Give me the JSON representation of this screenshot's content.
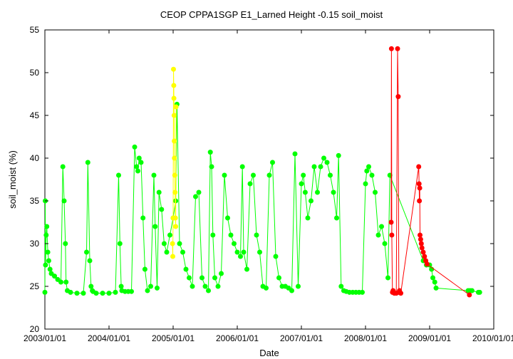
{
  "chart_data": {
    "type": "scatter",
    "title": "CEOP CPPA1SGP E1_Larned Height -0.15 soil_moist",
    "xlabel": "Date",
    "ylabel": "soil_moist (%)",
    "xlim": [
      2003.0,
      2010.0
    ],
    "ylim": [
      20,
      55
    ],
    "x_ticks": [
      "2003/01/01",
      "2004/01/01",
      "2005/01/01",
      "2006/01/01",
      "2007/01/01",
      "2008/01/01",
      "2009/01/01",
      "2010/01/01"
    ],
    "y_ticks": [
      20,
      25,
      30,
      35,
      40,
      45,
      50,
      55
    ],
    "grid": false,
    "series": [
      {
        "name": "green",
        "color": "#00ff00",
        "x": [
          2003.0,
          2003.005,
          2003.01,
          2003.02,
          2003.03,
          2003.045,
          2003.06,
          2003.08,
          2003.1,
          2003.15,
          2003.2,
          2003.25,
          2003.28,
          2003.3,
          2003.32,
          2003.33,
          2003.35,
          2003.4,
          2003.5,
          2003.6,
          2003.65,
          2003.67,
          2003.7,
          2003.72,
          2003.74,
          2003.75,
          2003.8,
          2003.9,
          2004.0,
          2004.1,
          2004.15,
          2004.17,
          2004.19,
          2004.2,
          2004.25,
          2004.3,
          2004.35,
          2004.4,
          2004.43,
          2004.45,
          2004.47,
          2004.5,
          2004.53,
          2004.56,
          2004.6,
          2004.65,
          2004.7,
          2004.72,
          2004.75,
          2004.78,
          2004.82,
          2004.86,
          2004.9,
          2004.95,
          2005.0,
          2005.04,
          2005.06,
          2005.1,
          2005.15,
          2005.2,
          2005.25,
          2005.3,
          2005.35,
          2005.4,
          2005.45,
          2005.5,
          2005.55,
          2005.58,
          2005.6,
          2005.62,
          2005.65,
          2005.7,
          2005.75,
          2005.8,
          2005.85,
          2005.9,
          2005.95,
          2006.0,
          2006.05,
          2006.08,
          2006.1,
          2006.15,
          2006.2,
          2006.25,
          2006.3,
          2006.35,
          2006.4,
          2006.45,
          2006.5,
          2006.55,
          2006.6,
          2006.65,
          2006.7,
          2006.75,
          2006.8,
          2006.85,
          2006.9,
          2006.95,
          2007.0,
          2007.03,
          2007.06,
          2007.1,
          2007.15,
          2007.2,
          2007.25,
          2007.3,
          2007.35,
          2007.4,
          2007.45,
          2007.5,
          2007.55,
          2007.58,
          2007.62,
          2007.66,
          2007.7,
          2007.75,
          2007.8,
          2007.85,
          2007.9,
          2007.95,
          2008.0,
          2008.02,
          2008.05,
          2008.1,
          2008.15,
          2008.2,
          2008.25,
          2008.3,
          2008.35,
          2008.38,
          2008.9,
          2008.95,
          2009.0,
          2009.03,
          2009.05,
          2009.08,
          2009.1,
          2009.6,
          2009.63,
          2009.66,
          2009.76,
          2009.78
        ],
        "values": [
          24.3,
          35.0,
          27.5,
          31.0,
          32.0,
          29.0,
          28.0,
          27.0,
          26.5,
          26.2,
          25.8,
          25.5,
          39.0,
          35.0,
          30.0,
          25.5,
          24.5,
          24.3,
          24.2,
          24.2,
          29.0,
          39.5,
          28.0,
          25.0,
          24.5,
          24.4,
          24.2,
          24.2,
          24.2,
          24.3,
          38.0,
          30.0,
          25.0,
          24.5,
          24.4,
          24.4,
          24.4,
          41.3,
          39.0,
          38.5,
          40.0,
          39.5,
          33.0,
          27.0,
          24.5,
          25.0,
          38.0,
          32.0,
          24.8,
          36.0,
          34.0,
          30.0,
          29.0,
          31.0,
          33.0,
          35.0,
          46.3,
          30.0,
          29.0,
          27.0,
          26.0,
          25.0,
          35.5,
          36.0,
          26.0,
          25.0,
          24.5,
          40.7,
          39.0,
          31.0,
          26.0,
          25.0,
          26.5,
          38.0,
          33.0,
          31.0,
          30.0,
          29.0,
          28.5,
          39.0,
          29.0,
          27.0,
          37.0,
          38.0,
          31.0,
          29.0,
          25.0,
          24.8,
          38.0,
          39.5,
          28.5,
          26.0,
          25.0,
          25.0,
          24.8,
          24.5,
          40.5,
          25.0,
          37.0,
          38.0,
          36.0,
          33.0,
          35.0,
          39.0,
          36.0,
          39.0,
          40.0,
          39.5,
          38.0,
          36.0,
          33.0,
          40.3,
          25.0,
          24.5,
          24.4,
          24.3,
          24.3,
          24.3,
          24.3,
          24.3,
          37.0,
          38.5,
          39.0,
          38.0,
          36.0,
          31.0,
          32.0,
          30.0,
          26.0,
          38.0,
          28.0,
          27.5,
          27.5,
          27.0,
          26.0,
          25.5,
          24.8,
          24.5,
          24.5,
          24.5,
          24.3,
          24.3
        ]
      },
      {
        "name": "yellow",
        "color": "#ffff00",
        "x": [
          2004.99,
          2004.995,
          2005.0,
          2005.005,
          2005.01,
          2005.012,
          2005.015,
          2005.018,
          2005.02,
          2005.025,
          2005.03,
          2005.035,
          2005.04,
          2005.045
        ],
        "values": [
          30.0,
          28.5,
          33.0,
          50.4,
          48.5,
          47.0,
          45.0,
          42.0,
          40.0,
          38.0,
          36.0,
          33.0,
          32.0,
          46.0
        ]
      },
      {
        "name": "red",
        "color": "#ff0000",
        "x": [
          2008.4,
          2008.405,
          2008.41,
          2008.42,
          2008.43,
          2008.45,
          2008.48,
          2008.5,
          2008.51,
          2008.52,
          2008.53,
          2008.55,
          2008.83,
          2008.835,
          2008.84,
          2008.845,
          2008.85,
          2008.86,
          2008.87,
          2008.88,
          2008.9,
          2008.92,
          2008.94,
          2008.96,
          2009.62
        ],
        "values": [
          32.5,
          52.8,
          31.0,
          24.3,
          24.5,
          24.2,
          24.2,
          52.8,
          47.2,
          24.3,
          24.5,
          24.2,
          39.0,
          37.0,
          35.0,
          36.5,
          31.0,
          30.5,
          30.0,
          29.5,
          29.0,
          28.5,
          28.0,
          27.6,
          24.0
        ]
      }
    ]
  }
}
